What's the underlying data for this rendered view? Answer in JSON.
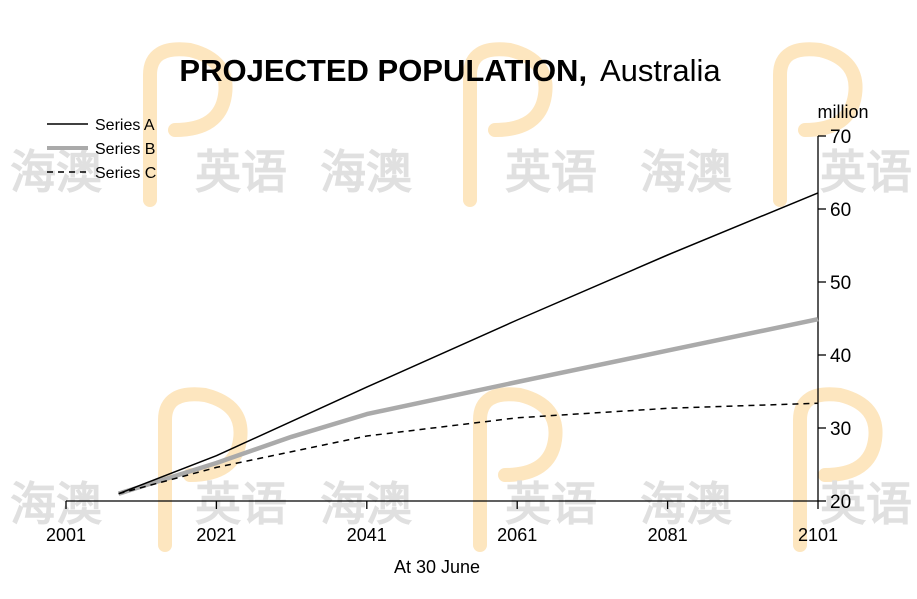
{
  "chart_data": {
    "type": "line",
    "title": "PROJECTED POPULATION,",
    "title_suffix": "Australia",
    "xlabel": "At 30 June",
    "ylabel": "million",
    "xlim": [
      2001,
      2101
    ],
    "ylim": [
      20,
      70
    ],
    "x_ticks": [
      "2001",
      "2021",
      "2041",
      "2061",
      "2081",
      "2101"
    ],
    "y_ticks": [
      "20",
      "30",
      "40",
      "50",
      "60",
      "70"
    ],
    "legend_position": "top-left",
    "grid": false,
    "series": [
      {
        "name": "Series A",
        "color": "#000000",
        "style": "solid",
        "x": [
          2008,
          2021,
          2041,
          2061,
          2081,
          2101
        ],
        "y": [
          21.0,
          26.2,
          35.6,
          44.8,
          53.7,
          62.2
        ]
      },
      {
        "name": "Series B",
        "color": "#aaaaaa",
        "style": "solid-thick",
        "x": [
          2008,
          2021,
          2031,
          2041,
          2061,
          2081,
          2101
        ],
        "y": [
          21.0,
          25.2,
          28.8,
          31.9,
          36.3,
          40.6,
          44.9
        ]
      },
      {
        "name": "Series C",
        "color": "#000000",
        "style": "dashed",
        "x": [
          2008,
          2021,
          2041,
          2061,
          2081,
          2101
        ],
        "y": [
          21.0,
          24.6,
          28.9,
          31.4,
          32.7,
          33.4
        ]
      }
    ]
  },
  "watermark": {
    "rows": [
      [
        "海澳",
        "英语",
        "海澳",
        "英语",
        "海澳",
        "英语"
      ],
      [
        "海澳",
        "英语",
        "海澳",
        "英语",
        "海澳",
        "英语"
      ]
    ],
    "text_color": "#e0e0e0",
    "logo_color": "#fde6bf"
  }
}
